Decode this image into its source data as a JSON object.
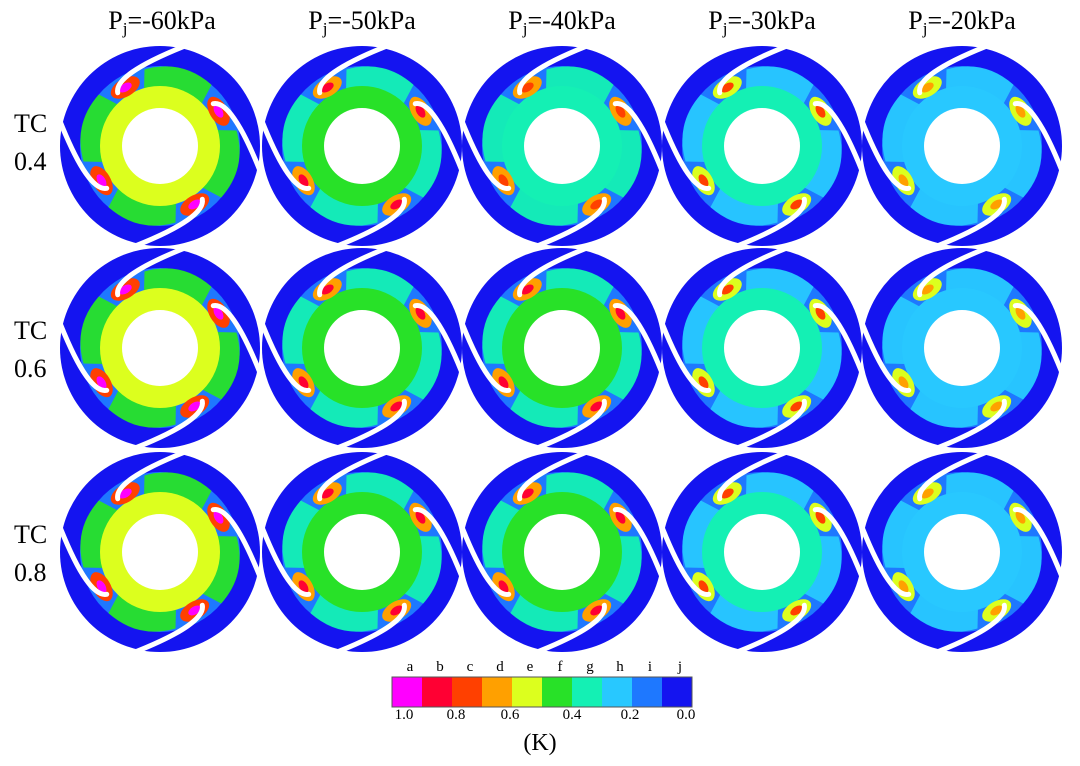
{
  "column_headers": [
    {
      "main": "P",
      "sub": "j",
      "rest": "=-60kPa"
    },
    {
      "main": "P",
      "sub": "j",
      "rest": "=-50kPa"
    },
    {
      "main": "P",
      "sub": "j",
      "rest": "=-40kPa"
    },
    {
      "main": "P",
      "sub": "j",
      "rest": "=-30kPa"
    },
    {
      "main": "P",
      "sub": "j",
      "rest": "=-20kPa"
    }
  ],
  "row_labels": [
    {
      "line1": "TC",
      "line2": "0.4"
    },
    {
      "line1": "TC",
      "line2": "0.6"
    },
    {
      "line1": "TC",
      "line2": "0.8"
    }
  ],
  "colorbar": {
    "letters": [
      "a",
      "b",
      "c",
      "d",
      "e",
      "f",
      "g",
      "h",
      "i",
      "j"
    ],
    "colors": [
      "#ff00ff",
      "#ff0033",
      "#ff4000",
      "#ffa000",
      "#dcff1e",
      "#28e128",
      "#14f0b4",
      "#28c8ff",
      "#1e78ff",
      "#1414f0"
    ],
    "ticks": [
      "1.0",
      "0.8",
      "0.6",
      "0.4",
      "0.2",
      "0.0"
    ],
    "unit": "(K)"
  },
  "contour_levels": {
    "TC 0.4": {
      "-60kPa": 0.55,
      "-50kPa": 0.42,
      "-40kPa": 0.4,
      "-30kPa": 0.33,
      "-20kPa": 0.3
    },
    "TC 0.6": {
      "-60kPa": 0.58,
      "-50kPa": 0.45,
      "-40kPa": 0.42,
      "-30kPa": 0.34,
      "-20kPa": 0.3
    },
    "TC 0.8": {
      "-60kPa": 0.56,
      "-50kPa": 0.46,
      "-40kPa": 0.44,
      "-30kPa": 0.36,
      "-20kPa": 0.3
    }
  }
}
